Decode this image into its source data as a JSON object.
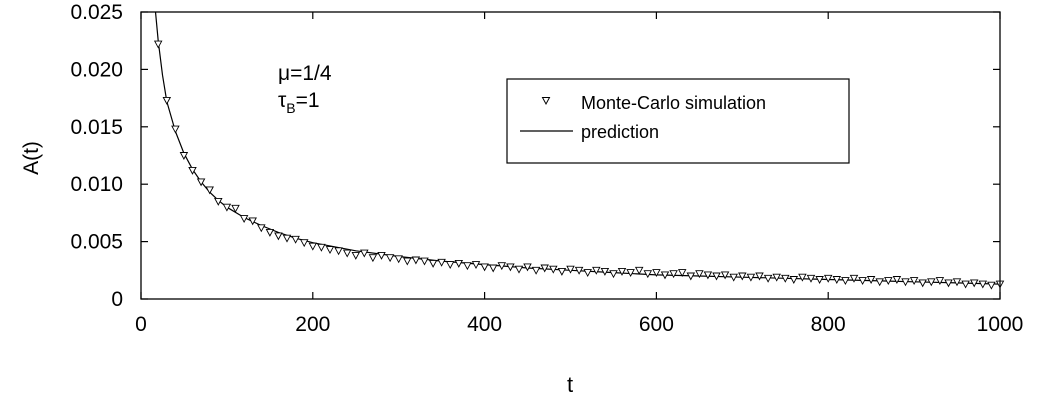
{
  "chart_data": {
    "type": "scatter",
    "ylabel": "A(t)",
    "xlabel": "t",
    "xlim": [
      0,
      1000
    ],
    "ylim": [
      0,
      0.025
    ],
    "x_ticks": [
      0,
      200,
      400,
      600,
      800,
      1000
    ],
    "x_tick_labels": [
      "0",
      "200",
      "400",
      "600",
      "800",
      "1000"
    ],
    "y_ticks": [
      0,
      0.005,
      0.01,
      0.015,
      0.02,
      0.025
    ],
    "y_tick_labels": [
      "0",
      "0.005",
      "0.010",
      "0.015",
      "0.020",
      "0.025"
    ],
    "grid": false,
    "legend_position": "top-right",
    "annotations": {
      "mu_label": "μ=1/4",
      "tau_symbol": "τ",
      "tau_sub": "B",
      "tau_value": "=1"
    },
    "series": [
      {
        "name": "Monte-Carlo simulation",
        "marker": "triangle-down",
        "color": "#000000",
        "x": [
          20,
          30,
          40,
          50,
          60,
          70,
          80,
          90,
          100,
          110,
          120,
          130,
          140,
          150,
          160,
          170,
          180,
          190,
          200,
          210,
          220,
          230,
          240,
          250,
          260,
          270,
          280,
          290,
          300,
          310,
          320,
          330,
          340,
          350,
          360,
          370,
          380,
          390,
          400,
          410,
          420,
          430,
          440,
          450,
          460,
          470,
          480,
          490,
          500,
          510,
          520,
          530,
          540,
          550,
          560,
          570,
          580,
          590,
          600,
          610,
          620,
          630,
          640,
          650,
          660,
          670,
          680,
          690,
          700,
          710,
          720,
          730,
          740,
          750,
          760,
          770,
          780,
          790,
          800,
          810,
          820,
          830,
          840,
          850,
          860,
          870,
          880,
          890,
          900,
          910,
          920,
          930,
          940,
          950,
          960,
          970,
          980,
          990,
          1000
        ],
        "y": [
          0.0222,
          0.0173,
          0.0148,
          0.0125,
          0.0112,
          0.0102,
          0.0095,
          0.0085,
          0.008,
          0.0079,
          0.007,
          0.0068,
          0.0062,
          0.0058,
          0.0055,
          0.0053,
          0.0052,
          0.0049,
          0.0046,
          0.0045,
          0.0043,
          0.0042,
          0.004,
          0.0038,
          0.004,
          0.0036,
          0.0038,
          0.0036,
          0.0035,
          0.0033,
          0.0034,
          0.0033,
          0.0031,
          0.0032,
          0.003,
          0.0031,
          0.0029,
          0.003,
          0.0028,
          0.0027,
          0.0029,
          0.0028,
          0.0026,
          0.0028,
          0.0025,
          0.0027,
          0.0026,
          0.0024,
          0.0026,
          0.0025,
          0.0023,
          0.0025,
          0.0024,
          0.0022,
          0.0024,
          0.0023,
          0.0025,
          0.0022,
          0.0023,
          0.0021,
          0.0022,
          0.0023,
          0.002,
          0.0022,
          0.0021,
          0.002,
          0.0021,
          0.0019,
          0.002,
          0.0019,
          0.002,
          0.0018,
          0.0019,
          0.0018,
          0.0017,
          0.0019,
          0.0018,
          0.0017,
          0.0018,
          0.0017,
          0.0016,
          0.0018,
          0.0016,
          0.0017,
          0.0015,
          0.0016,
          0.0017,
          0.0015,
          0.0016,
          0.0014,
          0.0015,
          0.0016,
          0.0014,
          0.0015,
          0.0013,
          0.0014,
          0.0013,
          0.0012,
          0.0013
        ]
      },
      {
        "name": "prediction",
        "style": "line",
        "color": "#000000",
        "x": [
          15,
          20,
          25,
          30,
          40,
          50,
          60,
          70,
          80,
          90,
          100,
          120,
          140,
          160,
          180,
          200,
          250,
          300,
          350,
          400,
          450,
          500,
          550,
          600,
          650,
          700,
          750,
          800,
          850,
          900,
          950,
          1000
        ],
        "y": [
          0.0265,
          0.0225,
          0.0195,
          0.0172,
          0.0146,
          0.0127,
          0.0113,
          0.0102,
          0.0093,
          0.0086,
          0.008,
          0.0071,
          0.0064,
          0.0058,
          0.0053,
          0.0049,
          0.0042,
          0.0037,
          0.0033,
          0.003,
          0.0027,
          0.0025,
          0.0023,
          0.0021,
          0.002,
          0.0019,
          0.0018,
          0.0017,
          0.0016,
          0.0015,
          0.0014,
          0.0013
        ]
      }
    ]
  }
}
